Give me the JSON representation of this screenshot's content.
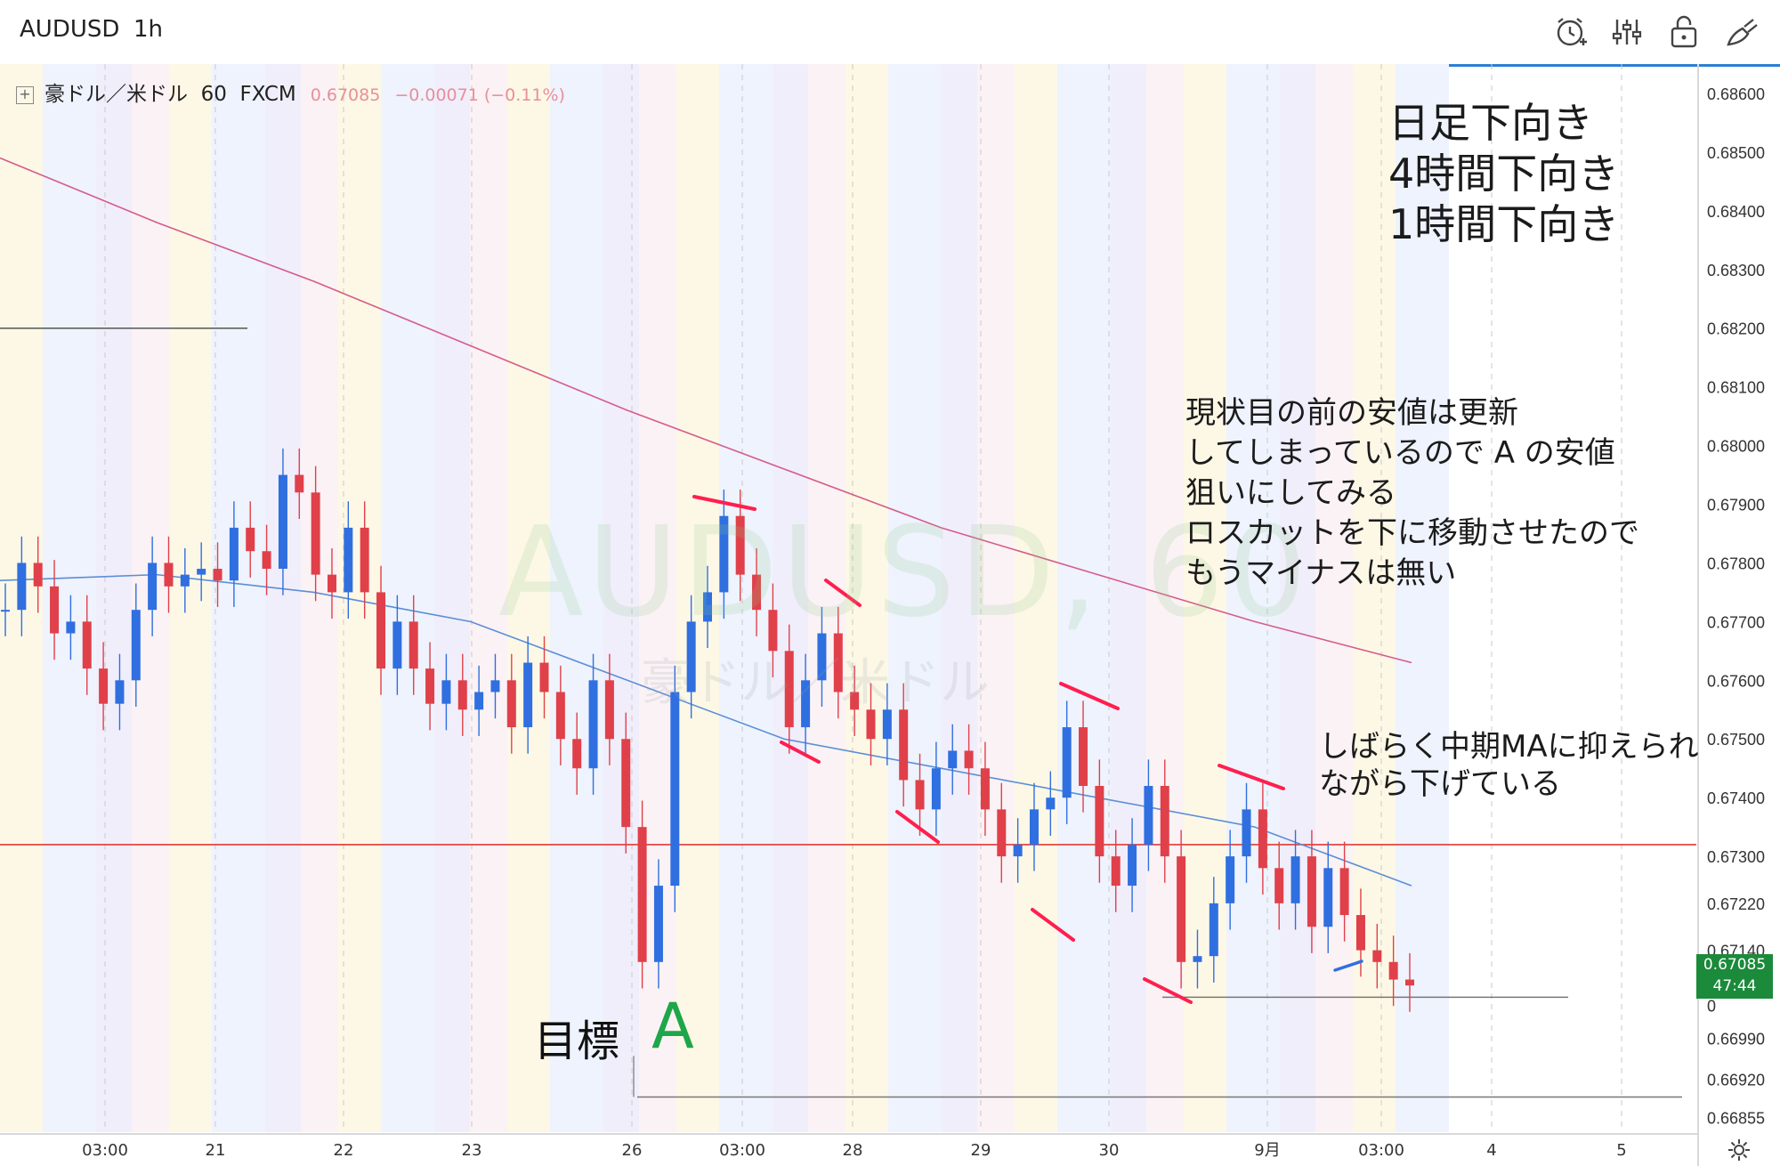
{
  "toolbar": {
    "symbol": "AUDUSD",
    "timeframe": "1h",
    "icons": [
      "alarm-add-icon",
      "indicators-icon",
      "lock-icon",
      "draw-icon"
    ]
  },
  "legend": {
    "name": "豪ドル／米ドル",
    "interval": "60",
    "exchange": "FXCM",
    "price": "0.67085",
    "change": "−0.00071",
    "change_pct": "(−0.11%)"
  },
  "watermark": {
    "line1": "AUDUSD, 60",
    "line2": "豪ドル／米ドル"
  },
  "price_axis": {
    "labels": [
      "0.68600",
      "0.68500",
      "0.68400",
      "0.68300",
      "0.68200",
      "0.68100",
      "0.68000",
      "0.67900",
      "0.67800",
      "0.67700",
      "0.67600",
      "0.67500",
      "0.67400",
      "0.67300",
      "0.67220",
      "0.67140",
      "0.67085",
      "0.66990",
      "0.66920",
      "0.66855"
    ],
    "current_price": "0.67085",
    "countdown": "47:44",
    "partial_label": "0"
  },
  "time_axis": {
    "labels": [
      "03:00",
      "21",
      "22",
      "23",
      "26",
      "03:00",
      "28",
      "29",
      "30",
      "9月",
      "03:00",
      "4",
      "5"
    ]
  },
  "notes": {
    "trend": [
      "日足下向き",
      "4時間下向き",
      "1時間下向き"
    ],
    "main": [
      "現状目の前の安値は更新",
      "してしまっているので A の安値",
      "狙いにしてみる",
      "ロスカットを下に移動させたので",
      "もうマイナスは無い"
    ],
    "ma": [
      "しばらく中期MAに抑えられ",
      "ながら下げている"
    ],
    "target_label": "目標",
    "target_letter": "A"
  },
  "chart_data": {
    "type": "candlestick",
    "symbol": "AUDUSD",
    "interval": "60",
    "ylim": [
      0.6683,
      0.6865
    ],
    "x_ticks": [
      "03:00",
      "21",
      "22",
      "23",
      "26",
      "03:00",
      "28",
      "29",
      "30",
      "9月",
      "03:00",
      "4",
      "5"
    ],
    "close_series": [
      0.6772,
      0.678,
      0.6776,
      0.6768,
      0.677,
      0.6762,
      0.6756,
      0.676,
      0.6772,
      0.678,
      0.6776,
      0.6778,
      0.6779,
      0.6777,
      0.6786,
      0.6782,
      0.6779,
      0.6795,
      0.6792,
      0.6778,
      0.6775,
      0.6786,
      0.6775,
      0.6762,
      0.677,
      0.6762,
      0.6756,
      0.676,
      0.6755,
      0.6758,
      0.676,
      0.6752,
      0.6763,
      0.6758,
      0.675,
      0.6745,
      0.676,
      0.675,
      0.6735,
      0.6712,
      0.6725,
      0.6758,
      0.677,
      0.6775,
      0.6788,
      0.6778,
      0.6772,
      0.6765,
      0.6752,
      0.676,
      0.6768,
      0.6758,
      0.6755,
      0.675,
      0.6755,
      0.6743,
      0.6738,
      0.6745,
      0.6748,
      0.6745,
      0.6738,
      0.673,
      0.6732,
      0.6738,
      0.674,
      0.6752,
      0.6742,
      0.673,
      0.6725,
      0.6732,
      0.6742,
      0.673,
      0.6712,
      0.6713,
      0.6722,
      0.673,
      0.6738,
      0.6728,
      0.6722,
      0.673,
      0.6718,
      0.6728,
      0.672,
      0.6714,
      0.6712,
      0.6709,
      0.6708
    ],
    "lines": {
      "slow_ma": [
        0.6849,
        0.6838,
        0.6828,
        0.6817,
        0.6806,
        0.6796,
        0.6786,
        0.6778,
        0.677,
        0.6763
      ],
      "mid_ma": [
        0.6777,
        0.6778,
        0.6775,
        0.677,
        0.676,
        0.675,
        0.6745,
        0.674,
        0.6735,
        0.6725
      ],
      "support_level": 0.6732,
      "target_level": 0.6689,
      "stop_level": 0.6706,
      "old_level": 0.682
    }
  }
}
